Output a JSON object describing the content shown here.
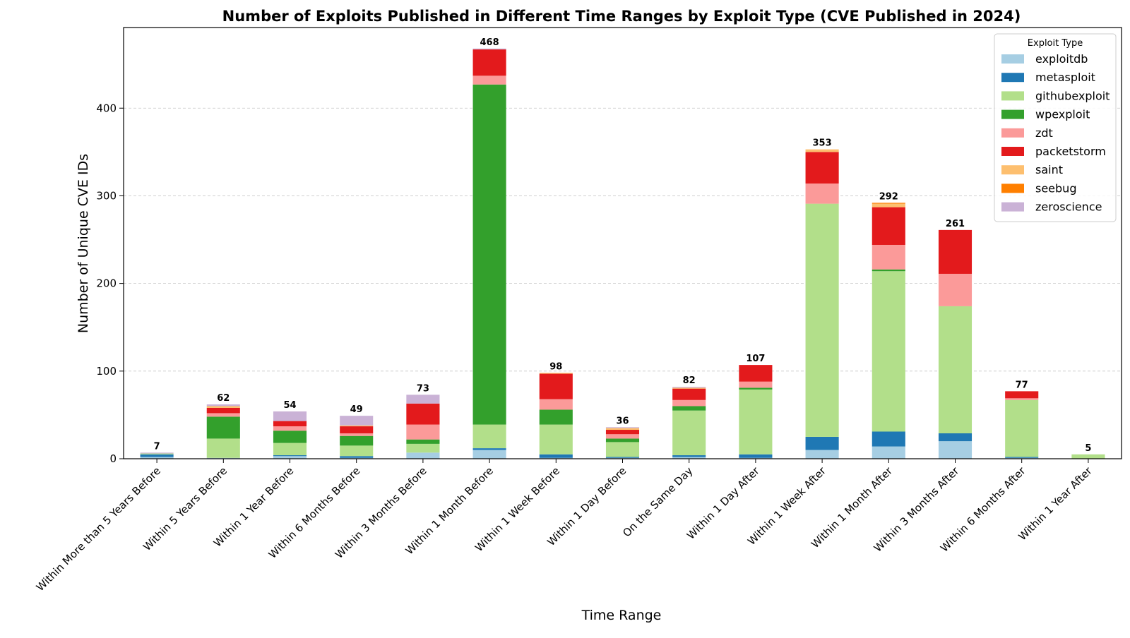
{
  "chart_data": {
    "type": "bar",
    "stacked": true,
    "title": "Number of Exploits Published in Different Time Ranges by Exploit Type (CVE Published in 2024)",
    "xlabel": "Time Range",
    "ylabel": "Number of Unique CVE IDs",
    "ylim": [
      0,
      492
    ],
    "yticks": [
      0,
      100,
      200,
      300,
      400
    ],
    "grid": "y-dashed",
    "legend_title": "Exploit Type",
    "legend_position": "top-right",
    "categories": [
      "Within More than 5 Years Before",
      "Within 5 Years Before",
      "Within 1 Year Before",
      "Within 6 Months Before",
      "Within 3 Months Before",
      "Within 1 Month Before",
      "Within 1 Week Before",
      "Within 1 Day Before",
      "On the Same Day",
      "Within 1 Day After",
      "Within 1 Week After",
      "Within 1 Month After",
      "Within 3 Months After",
      "Within 6 Months After",
      "Within 1 Year After"
    ],
    "totals": [
      7,
      62,
      54,
      49,
      73,
      468,
      98,
      36,
      82,
      107,
      353,
      292,
      261,
      77,
      5
    ],
    "series": [
      {
        "name": "exploitdb",
        "color": "#a6cee3",
        "values": [
          2,
          1,
          3,
          1,
          7,
          10,
          1,
          1,
          2,
          1,
          10,
          14,
          20,
          1,
          0
        ]
      },
      {
        "name": "metasploit",
        "color": "#1f78b4",
        "values": [
          3,
          0,
          1,
          2,
          0,
          2,
          4,
          1,
          2,
          4,
          15,
          17,
          9,
          1,
          0
        ]
      },
      {
        "name": "githubexploit",
        "color": "#b2df8a",
        "values": [
          1,
          22,
          14,
          12,
          10,
          27,
          34,
          17,
          51,
          74,
          266,
          183,
          145,
          65,
          5
        ]
      },
      {
        "name": "wpexploit",
        "color": "#33a02c",
        "values": [
          0,
          25,
          14,
          11,
          5,
          388,
          17,
          4,
          5,
          2,
          0,
          2,
          0,
          0,
          0
        ]
      },
      {
        "name": "zdt",
        "color": "#fb9a99",
        "values": [
          0,
          4,
          5,
          3,
          17,
          10,
          12,
          5,
          7,
          7,
          23,
          28,
          37,
          2,
          0
        ]
      },
      {
        "name": "packetstorm",
        "color": "#e31a1c",
        "values": [
          0,
          6,
          6,
          8,
          24,
          30,
          29,
          5,
          13,
          19,
          36,
          43,
          50,
          8,
          0
        ]
      },
      {
        "name": "saint",
        "color": "#fdbf6f",
        "values": [
          0,
          2,
          0,
          1,
          0,
          0,
          1,
          2,
          1,
          0,
          3,
          4,
          0,
          0,
          0
        ]
      },
      {
        "name": "seebug",
        "color": "#ff7f00",
        "values": [
          0,
          0,
          0,
          0,
          0,
          0,
          0,
          0,
          0,
          0,
          0,
          1,
          0,
          0,
          0
        ]
      },
      {
        "name": "zeroscience",
        "color": "#cab2d6",
        "values": [
          1,
          2,
          11,
          11,
          10,
          1,
          0,
          1,
          1,
          0,
          0,
          0,
          0,
          0,
          0
        ]
      }
    ]
  }
}
